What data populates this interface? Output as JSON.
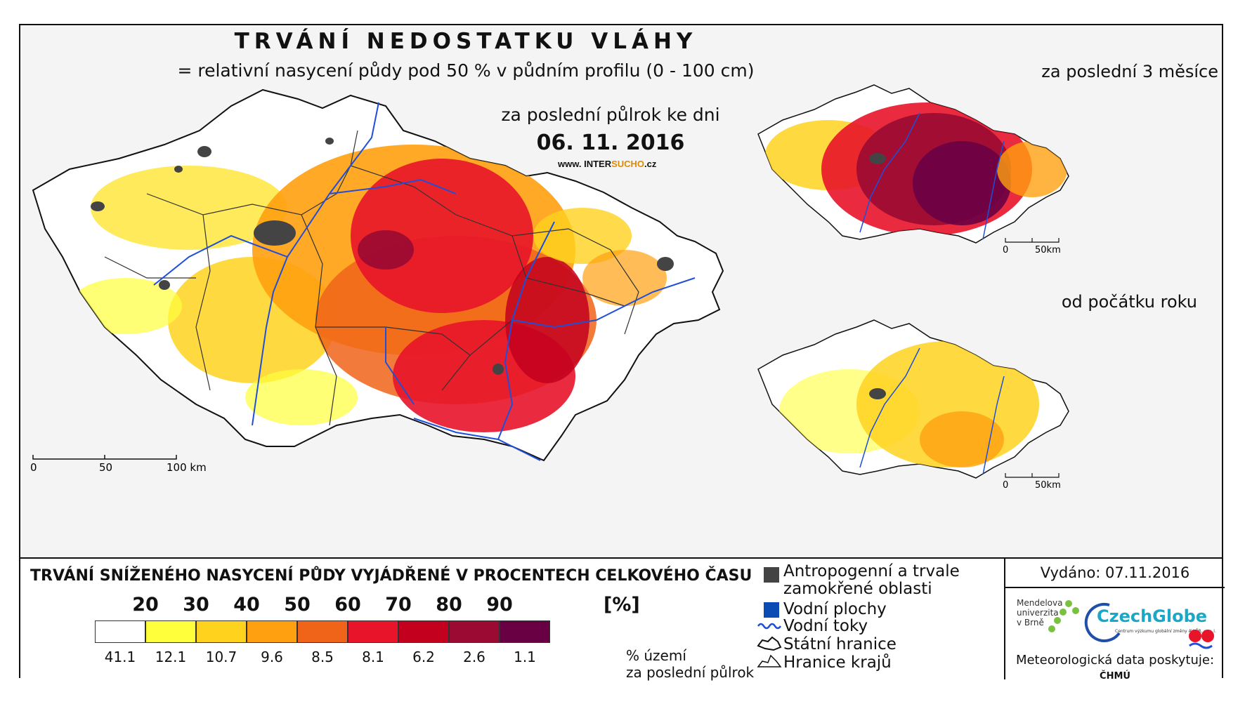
{
  "header": {
    "title": "TRVÁNÍ NEDOSTATKU VLÁHY",
    "subtitle": "= relativní nasycení půdy pod 50 % v půdním profilu (0 - 100 cm)",
    "period": "za poslední půlrok ke dni",
    "date": "06. 11. 2016",
    "website_prefix": "www. INTER",
    "website_brand": "SUCHO",
    "website_suffix": ".cz"
  },
  "insets": {
    "top_label": "za poslední 3 měsíce",
    "bottom_label": "od počátku roku"
  },
  "scalebar_main": {
    "zero": "0",
    "mid": "50",
    "end": "100 km"
  },
  "scalebar_inset": {
    "zero": "0",
    "end": "50km"
  },
  "legend": {
    "title": "TRVÁNÍ SNÍŽENÉHO NASYCENÍ PŮDY VYJÁDŘENÉ V PROCENTECH CELKOVÉHO ČASU",
    "thresholds": [
      "20",
      "30",
      "40",
      "50",
      "60",
      "70",
      "80",
      "90"
    ],
    "unit": "[%]",
    "classes": [
      {
        "color": "#ffffff",
        "percent": "41.1"
      },
      {
        "color": "#ffff3c",
        "percent": "12.1"
      },
      {
        "color": "#ffd21e",
        "percent": "10.7"
      },
      {
        "color": "#ffa010",
        "percent": "9.6"
      },
      {
        "color": "#f06419",
        "percent": "8.5"
      },
      {
        "color": "#e8142a",
        "percent": "8.1"
      },
      {
        "color": "#c3001e",
        "percent": "6.2"
      },
      {
        "color": "#9a0a32",
        "percent": "2.6"
      },
      {
        "color": "#6a0044",
        "percent": "1.1"
      }
    ],
    "caption_line1": "% území",
    "caption_line2": "za poslední půlrok"
  },
  "key": {
    "anthropogenic_line1": "Antropogenní a trvale",
    "anthropogenic_line2": "zamokřené oblasti",
    "water_bodies": "Vodní plochy",
    "rivers": "Vodní toky",
    "state_border": "Státní hranice",
    "region_border": "Hranice krajů"
  },
  "credits": {
    "issued": "Vydáno: 07.11.2016",
    "mendel_line1": "Mendelova",
    "mendel_line2": "univerzita",
    "mendel_line3": "v Brně",
    "czechglobe": "CzechGlobe",
    "czechglobe_sub": "Centrum výzkumu globální změny AV ČR, v. v. i.",
    "meteo": "Meteorologická data poskytuje:",
    "chmu": "ČHMÚ"
  },
  "colors": {
    "frame": "#111111",
    "river": "#1f4fd8",
    "anthropogenic": "#444444",
    "water": "#0a4bb4"
  }
}
